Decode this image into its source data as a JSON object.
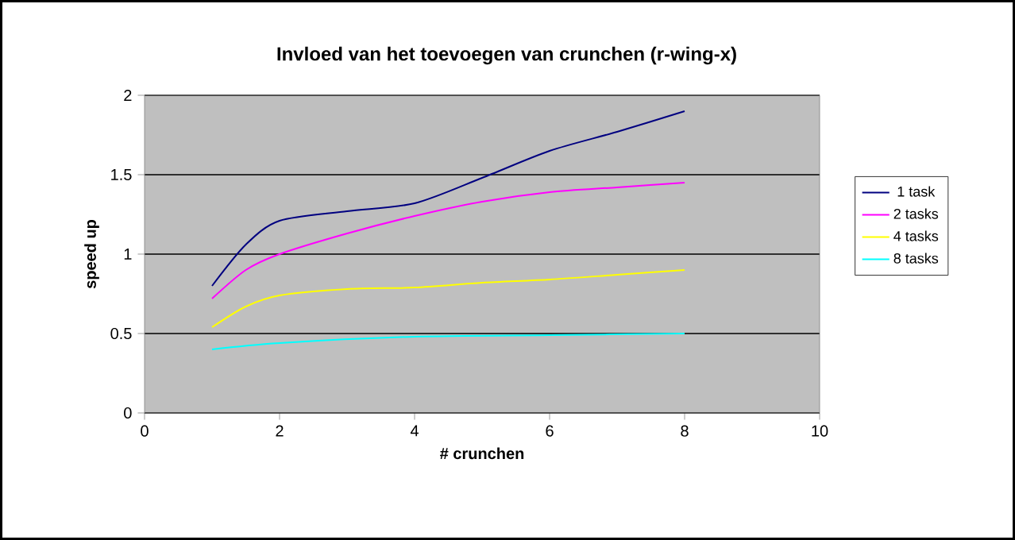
{
  "chart_data": {
    "type": "line",
    "title": "Invloed van het toevoegen van crunchen (r-wing-x)",
    "xlabel": "# crunchen",
    "ylabel": "speed up",
    "xlim": [
      0,
      10
    ],
    "xticks": [
      0,
      2,
      4,
      6,
      8,
      10
    ],
    "ylim": [
      0,
      2
    ],
    "yticks": [
      0,
      0.5,
      1,
      1.5,
      2
    ],
    "grid": "y",
    "legend": "right",
    "marker": "none",
    "line_style": "solid",
    "series": [
      {
        "name": "1 task",
        "color": "#000080",
        "x": [
          1,
          1.5,
          2,
          3,
          4,
          5,
          6,
          7,
          8
        ],
        "values": [
          0.8,
          1.06,
          1.21,
          1.27,
          1.32,
          1.48,
          1.65,
          1.77,
          1.9
        ]
      },
      {
        "name": "2 tasks",
        "color": "#ff00ff",
        "x": [
          1,
          1.5,
          2,
          3,
          4,
          5,
          6,
          7,
          8
        ],
        "values": [
          0.72,
          0.9,
          1.0,
          1.13,
          1.24,
          1.33,
          1.39,
          1.42,
          1.45
        ]
      },
      {
        "name": "4 tasks",
        "color": "#ffff00",
        "x": [
          1,
          1.5,
          2,
          3,
          4,
          5,
          6,
          7,
          8
        ],
        "values": [
          0.54,
          0.67,
          0.74,
          0.78,
          0.79,
          0.82,
          0.84,
          0.87,
          0.9
        ]
      },
      {
        "name": "8 tasks",
        "color": "#00ffff",
        "x": [
          1,
          2,
          4,
          6,
          8
        ],
        "values": [
          0.4,
          0.44,
          0.48,
          0.49,
          0.5
        ]
      }
    ]
  }
}
